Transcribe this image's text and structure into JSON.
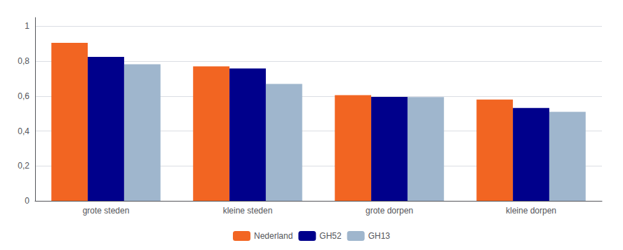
{
  "chart_data": {
    "type": "bar",
    "categories": [
      "grote steden",
      "kleine steden",
      "grote dorpen",
      "kleine dorpen"
    ],
    "series": [
      {
        "name": "Nederland",
        "color": "#F26522",
        "values": [
          0.905,
          0.77,
          0.605,
          0.58
        ]
      },
      {
        "name": "GH52",
        "color": "#00008B",
        "values": [
          0.825,
          0.758,
          0.595,
          0.532
        ]
      },
      {
        "name": "GH13",
        "color": "#9FB6CD",
        "values": [
          0.782,
          0.67,
          0.594,
          0.51
        ]
      }
    ],
    "ylim": [
      0,
      1.05
    ],
    "yticks": [
      0,
      {
        "value": 0.2,
        "label": "0,2"
      },
      {
        "value": 0.4,
        "label": "0,4"
      },
      {
        "value": 0.6,
        "label": "0,6"
      },
      {
        "value": 0.8,
        "label": "0,8"
      },
      1
    ],
    "grid": true,
    "legend": "bottom"
  }
}
